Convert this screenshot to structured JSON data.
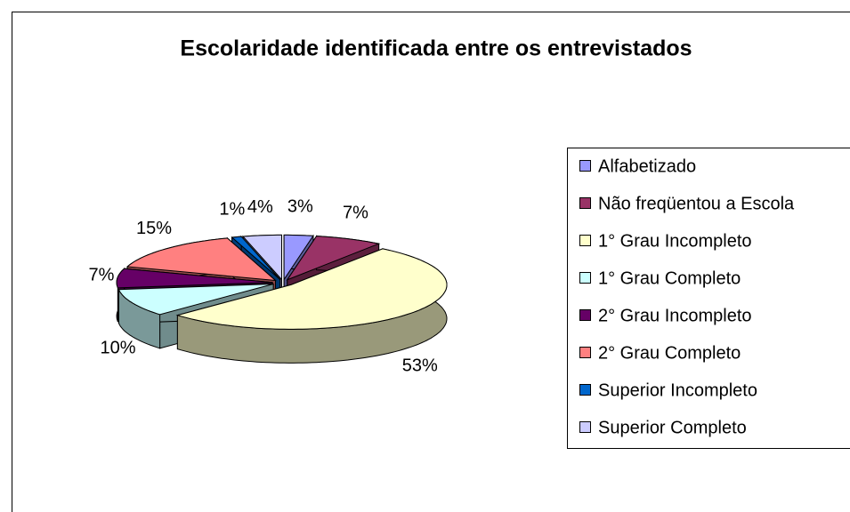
{
  "chart_data": {
    "type": "pie3d",
    "title": "Escolaridade identificada entre os entrevistados",
    "categories": [
      "Alfabetizado",
      "Não freqüentou a Escola",
      "1° Grau Incompleto",
      "1° Grau Completo",
      "2° Grau Incompleto",
      "2° Grau Completo",
      "Superior Incompleto",
      "Superior Completo"
    ],
    "values": [
      3,
      7,
      53,
      10,
      7,
      15,
      1,
      4
    ],
    "value_labels": [
      "3%",
      "7%",
      "53%",
      "10%",
      "7%",
      "15%",
      "1%",
      "4%"
    ],
    "colors": [
      "#9999ff",
      "#993366",
      "#ffffcc",
      "#ccffff",
      "#660066",
      "#ff8080",
      "#0066cc",
      "#ccccff"
    ],
    "legend": "right"
  }
}
